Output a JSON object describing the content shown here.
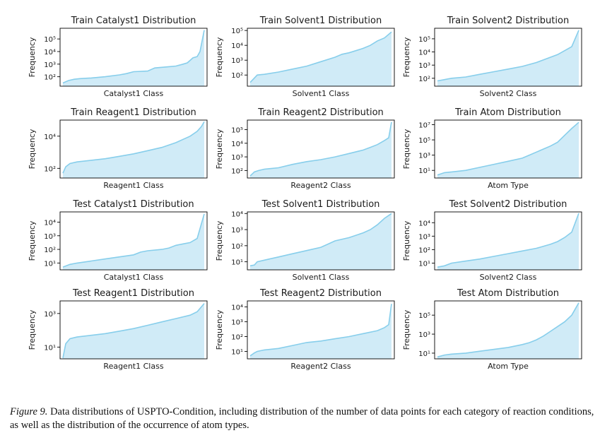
{
  "caption": {
    "label": "Figure 9.",
    "text": " Data distributions of USPTO-Condition, including distribution of the number of data points for each category of reaction conditions, as well as the distribution of the occurrence of atom types."
  },
  "style": {
    "line_color": "#87CEEB",
    "fill_color": "#C8E8F6",
    "fill_opacity": 0.85
  },
  "chart_data": [
    {
      "type": "area",
      "title": "Train Catalyst1 Distribution",
      "xlabel": "Catalyst1 Class",
      "ylabel": "Frequency",
      "yscale": "log",
      "ylim_log10": [
        1.25,
        5.85
      ],
      "yticks": [
        2,
        3,
        4,
        5
      ],
      "x": [
        0,
        0.04,
        0.08,
        0.12,
        0.2,
        0.3,
        0.4,
        0.45,
        0.5,
        0.6,
        0.65,
        0.7,
        0.75,
        0.8,
        0.85,
        0.88,
        0.9,
        0.92,
        0.95,
        0.97,
        1.0
      ],
      "log10_values": [
        1.5,
        1.7,
        1.8,
        1.85,
        1.9,
        2.0,
        2.15,
        2.25,
        2.4,
        2.45,
        2.7,
        2.75,
        2.8,
        2.85,
        3.0,
        3.1,
        3.3,
        3.5,
        3.6,
        4.0,
        5.7
      ]
    },
    {
      "type": "area",
      "title": "Train Solvent1 Distribution",
      "xlabel": "Solvent1 Class",
      "ylabel": "Frequency",
      "yscale": "log",
      "ylim_log10": [
        1.25,
        5.15
      ],
      "yticks": [
        2,
        3,
        4,
        5
      ],
      "x": [
        0,
        0.05,
        0.1,
        0.2,
        0.3,
        0.4,
        0.5,
        0.6,
        0.65,
        0.7,
        0.8,
        0.85,
        0.9,
        0.95,
        1.0
      ],
      "log10_values": [
        1.5,
        2.0,
        2.05,
        2.2,
        2.4,
        2.6,
        2.9,
        3.2,
        3.4,
        3.5,
        3.8,
        4.0,
        4.3,
        4.5,
        4.9
      ]
    },
    {
      "type": "area",
      "title": "Train Solvent2 Distribution",
      "xlabel": "Solvent2 Class",
      "ylabel": "Frequency",
      "yscale": "log",
      "ylim_log10": [
        1.4,
        5.8
      ],
      "yticks": [
        2,
        3,
        4,
        5
      ],
      "x": [
        0,
        0.05,
        0.1,
        0.2,
        0.3,
        0.4,
        0.5,
        0.6,
        0.7,
        0.75,
        0.8,
        0.85,
        0.9,
        0.95,
        1.0
      ],
      "log10_values": [
        1.8,
        1.9,
        2.0,
        2.1,
        2.3,
        2.5,
        2.7,
        2.9,
        3.2,
        3.4,
        3.6,
        3.8,
        4.1,
        4.4,
        5.65
      ]
    },
    {
      "type": "area",
      "title": "Train Reagent1 Distribution",
      "xlabel": "Reagent1 Class",
      "ylabel": "Frequency",
      "yscale": "log",
      "ylim_log10": [
        1.4,
        5.0
      ],
      "yticks": [
        2,
        4
      ],
      "x": [
        0,
        0.02,
        0.05,
        0.1,
        0.2,
        0.3,
        0.4,
        0.5,
        0.6,
        0.7,
        0.8,
        0.85,
        0.9,
        0.95,
        0.98,
        1.0
      ],
      "log10_values": [
        1.7,
        2.1,
        2.3,
        2.4,
        2.5,
        2.6,
        2.75,
        2.9,
        3.1,
        3.3,
        3.6,
        3.8,
        4.0,
        4.3,
        4.6,
        4.9
      ]
    },
    {
      "type": "area",
      "title": "Train Reagent2 Distribution",
      "xlabel": "Reagent2 Class",
      "ylabel": "Frequency",
      "yscale": "log",
      "ylim_log10": [
        1.45,
        5.7
      ],
      "yticks": [
        2,
        3,
        4,
        5
      ],
      "x": [
        0,
        0.03,
        0.06,
        0.1,
        0.2,
        0.3,
        0.4,
        0.5,
        0.6,
        0.7,
        0.8,
        0.85,
        0.9,
        0.95,
        0.98,
        1.0
      ],
      "log10_values": [
        1.6,
        1.9,
        2.0,
        2.1,
        2.2,
        2.45,
        2.65,
        2.8,
        3.0,
        3.25,
        3.5,
        3.7,
        3.9,
        4.2,
        4.4,
        5.55
      ]
    },
    {
      "type": "area",
      "title": "Train Atom Distribution",
      "xlabel": "Atom Type",
      "ylabel": "Frequency",
      "yscale": "log",
      "ylim_log10": [
        0.0,
        7.6
      ],
      "yticks": [
        1,
        3,
        5,
        7
      ],
      "x": [
        0,
        0.05,
        0.1,
        0.2,
        0.3,
        0.4,
        0.5,
        0.6,
        0.65,
        0.7,
        0.75,
        0.8,
        0.85,
        0.9,
        0.95,
        1.0
      ],
      "log10_values": [
        0.4,
        0.7,
        0.8,
        1.0,
        1.4,
        1.8,
        2.2,
        2.6,
        3.0,
        3.4,
        3.8,
        4.2,
        4.7,
        5.6,
        6.5,
        7.3
      ]
    },
    {
      "type": "area",
      "title": "Test Catalyst1 Distribution",
      "xlabel": "Catalyst1 Class",
      "ylabel": "Frequency",
      "yscale": "log",
      "ylim_log10": [
        0.5,
        4.75
      ],
      "yticks": [
        1,
        2,
        3,
        4
      ],
      "x": [
        0,
        0.05,
        0.1,
        0.2,
        0.3,
        0.4,
        0.5,
        0.55,
        0.6,
        0.7,
        0.75,
        0.8,
        0.85,
        0.9,
        0.95,
        1.0
      ],
      "log10_values": [
        0.7,
        0.9,
        1.0,
        1.15,
        1.3,
        1.45,
        1.6,
        1.8,
        1.9,
        2.0,
        2.1,
        2.3,
        2.4,
        2.5,
        2.8,
        4.6
      ]
    },
    {
      "type": "area",
      "title": "Test Solvent1 Distribution",
      "xlabel": "Solvent1 Class",
      "ylabel": "Frequency",
      "yscale": "log",
      "ylim_log10": [
        0.5,
        4.1
      ],
      "yticks": [
        1,
        2,
        3,
        4
      ],
      "x": [
        0,
        0.03,
        0.05,
        0.1,
        0.2,
        0.3,
        0.4,
        0.5,
        0.55,
        0.6,
        0.7,
        0.8,
        0.85,
        0.9,
        0.95,
        1.0
      ],
      "log10_values": [
        0.75,
        0.8,
        1.0,
        1.1,
        1.3,
        1.5,
        1.7,
        1.9,
        2.1,
        2.3,
        2.5,
        2.8,
        3.0,
        3.3,
        3.7,
        4.0
      ]
    },
    {
      "type": "area",
      "title": "Test Solvent2 Distribution",
      "xlabel": "Solvent2 Class",
      "ylabel": "Frequency",
      "yscale": "log",
      "ylim_log10": [
        0.5,
        4.8
      ],
      "yticks": [
        1,
        2,
        3,
        4
      ],
      "x": [
        0,
        0.05,
        0.1,
        0.2,
        0.3,
        0.4,
        0.5,
        0.6,
        0.7,
        0.8,
        0.85,
        0.9,
        0.95,
        1.0
      ],
      "log10_values": [
        0.7,
        0.8,
        1.0,
        1.15,
        1.3,
        1.5,
        1.7,
        1.9,
        2.1,
        2.4,
        2.6,
        2.9,
        3.3,
        4.7
      ]
    },
    {
      "type": "area",
      "title": "Test Reagent1 Distribution",
      "xlabel": "Reagent1 Class",
      "ylabel": "Frequency",
      "yscale": "log",
      "ylim_log10": [
        0.3,
        3.75
      ],
      "yticks": [
        1,
        3
      ],
      "x": [
        0,
        0.02,
        0.05,
        0.1,
        0.2,
        0.3,
        0.4,
        0.5,
        0.6,
        0.7,
        0.8,
        0.9,
        0.95,
        1.0
      ],
      "log10_values": [
        0.35,
        1.2,
        1.5,
        1.6,
        1.7,
        1.8,
        1.95,
        2.1,
        2.3,
        2.5,
        2.7,
        2.9,
        3.1,
        3.6
      ]
    },
    {
      "type": "area",
      "title": "Test Reagent2 Distribution",
      "xlabel": "Reagent2 Class",
      "ylabel": "Frequency",
      "yscale": "log",
      "ylim_log10": [
        0.5,
        4.4
      ],
      "yticks": [
        1,
        2,
        3,
        4
      ],
      "x": [
        0,
        0.03,
        0.05,
        0.1,
        0.2,
        0.3,
        0.4,
        0.5,
        0.6,
        0.7,
        0.8,
        0.9,
        0.95,
        0.98,
        1.0
      ],
      "log10_values": [
        0.7,
        0.9,
        1.0,
        1.1,
        1.2,
        1.4,
        1.6,
        1.7,
        1.85,
        2.0,
        2.2,
        2.4,
        2.6,
        2.8,
        4.2
      ]
    },
    {
      "type": "area",
      "title": "Test Atom Distribution",
      "xlabel": "Atom Type",
      "ylabel": "Frequency",
      "yscale": "log",
      "ylim_log10": [
        0.4,
        6.5
      ],
      "yticks": [
        1,
        3,
        5
      ],
      "x": [
        0,
        0.05,
        0.1,
        0.2,
        0.3,
        0.4,
        0.5,
        0.6,
        0.65,
        0.7,
        0.75,
        0.8,
        0.85,
        0.9,
        0.95,
        1.0
      ],
      "log10_values": [
        0.6,
        0.8,
        0.9,
        1.0,
        1.2,
        1.4,
        1.6,
        1.9,
        2.1,
        2.4,
        2.8,
        3.3,
        3.8,
        4.3,
        5.0,
        6.3
      ]
    }
  ]
}
